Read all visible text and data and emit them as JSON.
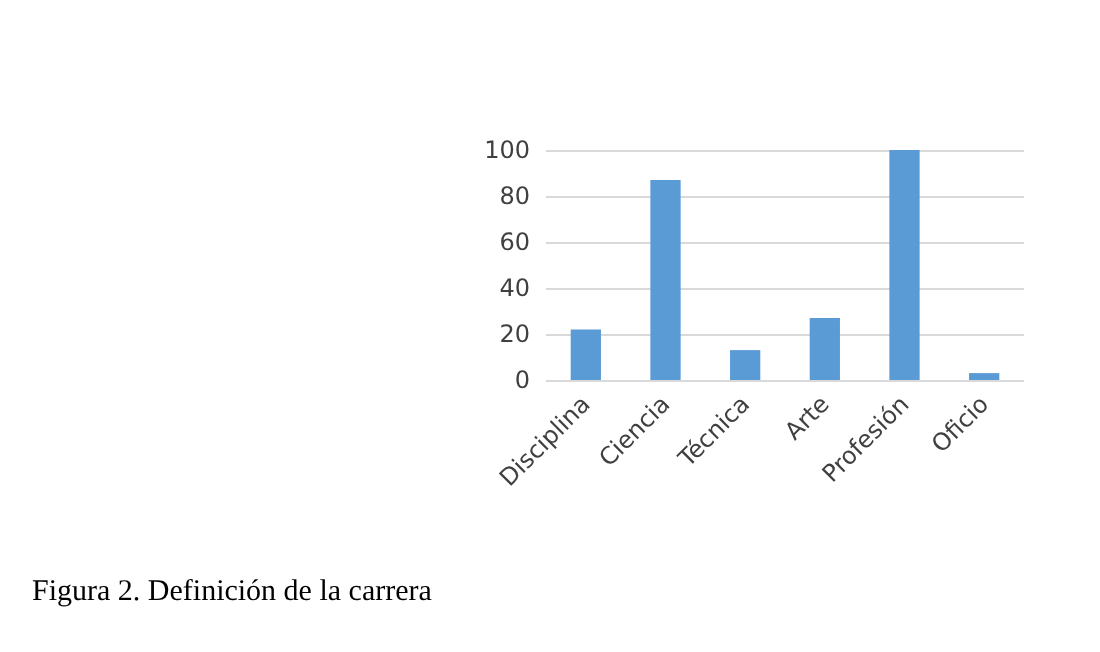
{
  "chart_data": {
    "type": "bar",
    "categories": [
      "Disciplina",
      "Ciencia",
      "Técnica",
      "Arte",
      "Profesión",
      "Oficio"
    ],
    "values": [
      22,
      87,
      13,
      27,
      100,
      3
    ],
    "color": "#5b9bd5",
    "ylim": [
      0,
      100
    ],
    "yticks": [
      0,
      20,
      40,
      60,
      80,
      100
    ],
    "grid": "y",
    "annotations": [
      "Figura 2. Definición de la carrera"
    ]
  }
}
